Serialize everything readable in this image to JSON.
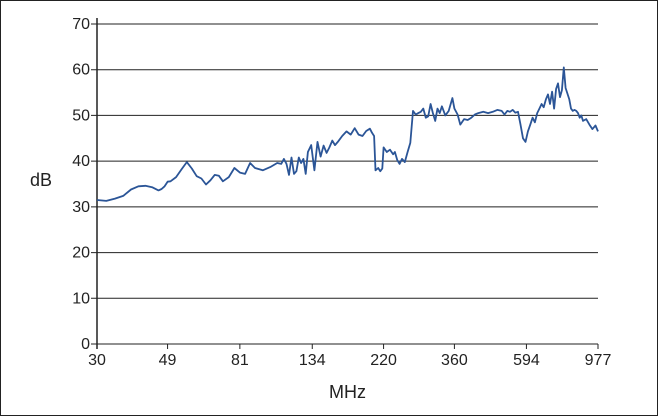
{
  "chart_data": {
    "type": "line",
    "title": "",
    "xlabel": "MHz",
    "ylabel": "dB",
    "ylim": [
      0,
      70
    ],
    "yticks": [
      "0",
      "10",
      "20",
      "30",
      "40",
      "50",
      "60",
      "70"
    ],
    "xticks": [
      "30",
      "49",
      "81",
      "134",
      "220",
      "360",
      "594",
      "977"
    ],
    "grid": "horizontal",
    "series_color": "#2b5597",
    "series": [
      {
        "x": [
          30,
          32,
          34,
          36,
          38,
          40,
          42,
          44,
          46,
          47,
          48,
          49,
          50,
          52,
          54,
          56,
          58,
          60,
          62,
          64,
          66,
          68,
          70,
          72,
          75,
          78,
          81,
          84,
          87,
          90,
          95,
          100,
          105,
          108,
          110,
          112,
          114,
          116,
          118,
          120,
          122,
          124,
          126,
          128,
          130,
          133,
          136,
          139,
          142,
          145,
          148,
          151,
          154,
          157,
          160,
          165,
          170,
          175,
          180,
          185,
          190,
          195,
          200,
          203,
          206,
          208,
          212,
          215,
          218,
          220,
          225,
          230,
          235,
          238,
          242,
          246,
          250,
          255,
          260,
          265,
          270,
          275,
          280,
          285,
          290,
          295,
          300,
          305,
          310,
          315,
          320,
          325,
          330,
          338,
          346,
          355,
          360,
          368,
          375,
          385,
          395,
          405,
          415,
          425,
          440,
          455,
          470,
          485,
          500,
          510,
          520,
          530,
          540,
          550,
          560,
          570,
          580,
          590,
          600,
          610,
          620,
          630,
          640,
          650,
          660,
          670,
          680,
          690,
          700,
          710,
          720,
          730,
          740,
          750,
          760,
          770,
          780,
          790,
          800,
          810,
          820,
          830,
          840,
          850,
          860,
          870,
          880,
          900,
          920,
          940,
          960,
          977
        ],
        "y": [
          31.5,
          31.3,
          31.8,
          32.4,
          33.8,
          34.5,
          34.6,
          34.3,
          33.6,
          33.9,
          34.5,
          35.5,
          35.6,
          36.5,
          38.2,
          39.8,
          38.4,
          36.7,
          36.2,
          34.9,
          35.8,
          37,
          36.8,
          35.6,
          36.5,
          38.5,
          37.5,
          37.2,
          39.6,
          38.5,
          38,
          38.7,
          39.6,
          39.4,
          40.5,
          39.4,
          37,
          40.8,
          37.2,
          37.8,
          40.8,
          39.6,
          40.5,
          37.2,
          42,
          43.5,
          38,
          44.2,
          41,
          43.4,
          41.8,
          43,
          44.5,
          43.5,
          44.2,
          45.5,
          46.5,
          45.8,
          47.2,
          45.8,
          45.5,
          46.6,
          47.1,
          46.2,
          45.5,
          38,
          38.5,
          37.8,
          38.4,
          43,
          42,
          42.5,
          41.5,
          42,
          40.2,
          39.4,
          40.5,
          39.8,
          42,
          44,
          51,
          50.2,
          50.5,
          50.8,
          51.5,
          49.5,
          49.8,
          52.5,
          50.5,
          48.8,
          51.5,
          50.5,
          52,
          50,
          51,
          53.8,
          51.5,
          50.2,
          48,
          49.2,
          49,
          49.5,
          50.2,
          50.5,
          50.8,
          50.5,
          50.8,
          51.2,
          51,
          50.2,
          51,
          50.8,
          51.2,
          50.6,
          50.8,
          48,
          45,
          44.2,
          46.5,
          48,
          49.5,
          48.5,
          50.5,
          51.5,
          52.5,
          51.8,
          53.5,
          54.6,
          52.5,
          55.2,
          51.5,
          55.8,
          57,
          54,
          55.5,
          60.5,
          56,
          54.8,
          53.5,
          51.5,
          51,
          51.2,
          51,
          50.5,
          49.5,
          50,
          48.8,
          49.2,
          48,
          47,
          47.8,
          46.5
        ]
      }
    ]
  }
}
